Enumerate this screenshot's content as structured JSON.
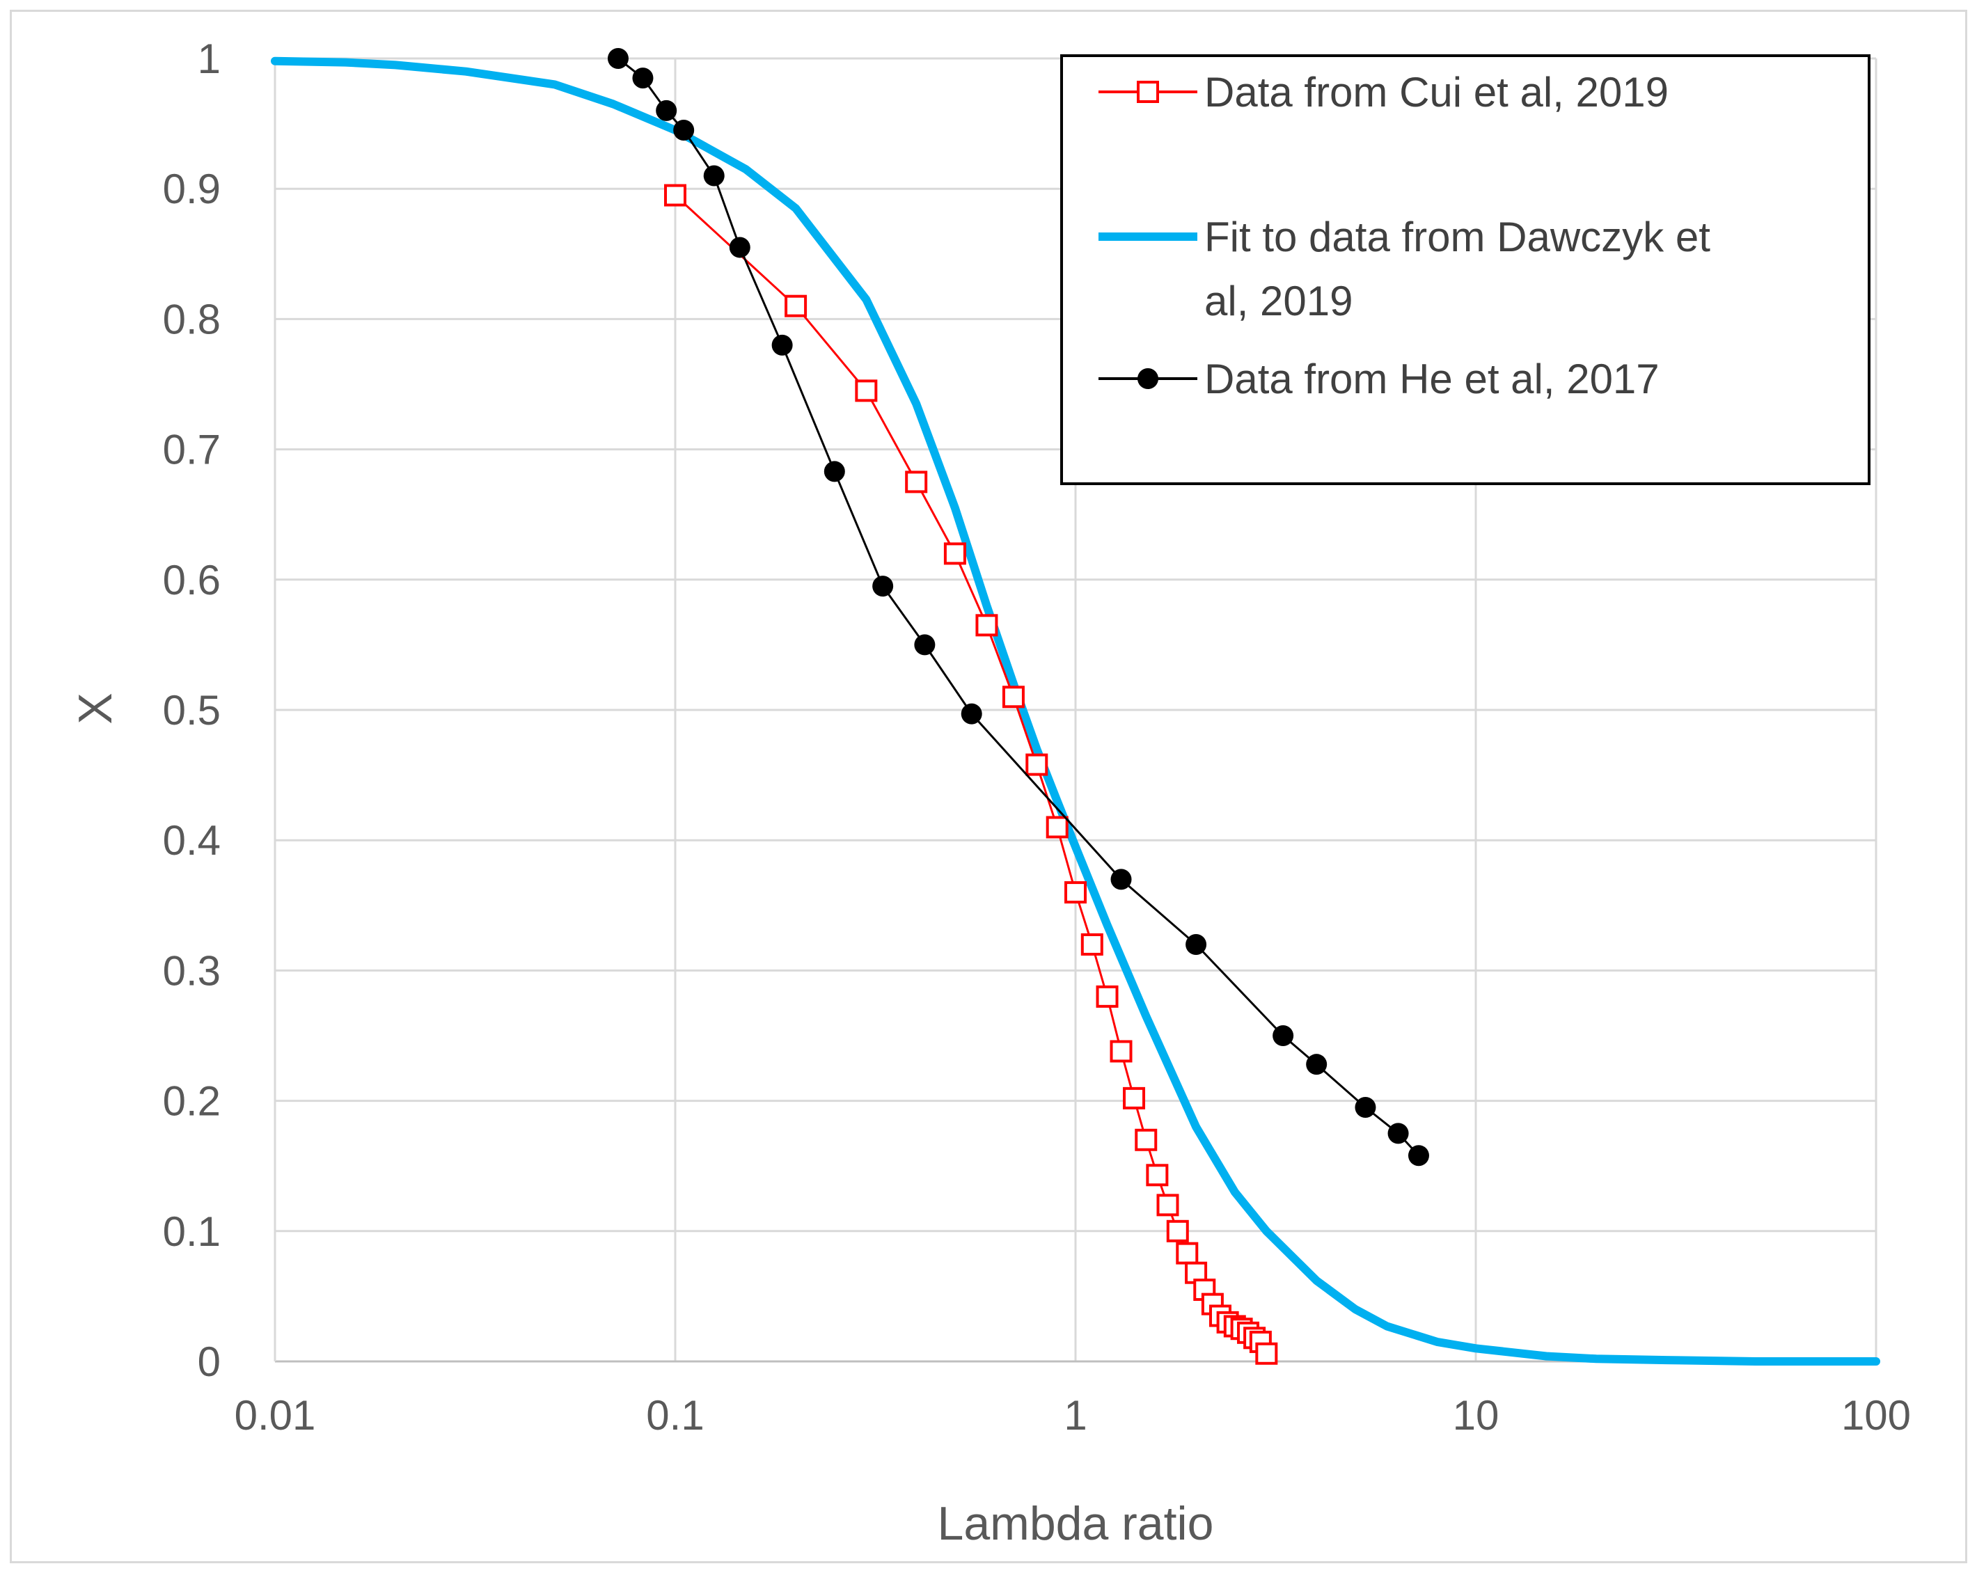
{
  "chart_data": {
    "type": "scatter",
    "title": "",
    "xlabel": "Lambda ratio",
    "ylabel": "X",
    "x_scale": "log",
    "xlim": [
      0.01,
      100
    ],
    "ylim": [
      0,
      1
    ],
    "x_ticks": [
      0.01,
      0.1,
      1,
      10,
      100
    ],
    "x_tick_labels": [
      "0.01",
      "0.1",
      "1",
      "10",
      "100"
    ],
    "y_ticks": [
      0,
      0.1,
      0.2,
      0.3,
      0.4,
      0.5,
      0.6,
      0.7,
      0.8,
      0.9,
      1
    ],
    "y_tick_labels": [
      "0",
      "0.1",
      "0.2",
      "0.3",
      "0.4",
      "0.5",
      "0.6",
      "0.7",
      "0.8",
      "0.9",
      "1"
    ],
    "grid": true,
    "legend_position": "top-right",
    "series": [
      {
        "name": "Data from Cui et al, 2019",
        "color": "#ff0000",
        "marker": "open-square",
        "line": true,
        "x": [
          0.1,
          0.2,
          0.3,
          0.4,
          0.5,
          0.6,
          0.7,
          0.8,
          0.9,
          1.0,
          1.1,
          1.2,
          1.3,
          1.4,
          1.5,
          1.6,
          1.7,
          1.8,
          1.9,
          2.0,
          2.1,
          2.2,
          2.3,
          2.4,
          2.5,
          2.6,
          2.7,
          2.8,
          2.9,
          3.0
        ],
        "y": [
          0.895,
          0.81,
          0.745,
          0.675,
          0.62,
          0.565,
          0.51,
          0.458,
          0.41,
          0.36,
          0.32,
          0.28,
          0.238,
          0.202,
          0.17,
          0.143,
          0.12,
          0.1,
          0.083,
          0.068,
          0.055,
          0.044,
          0.035,
          0.03,
          0.027,
          0.025,
          0.022,
          0.018,
          0.015,
          0.006
        ]
      },
      {
        "name": "Fit to data from Dawczyk et al, 2019",
        "color": "#00b0f0",
        "marker": "none",
        "line": true,
        "x": [
          0.01,
          0.015,
          0.02,
          0.03,
          0.05,
          0.07,
          0.1,
          0.15,
          0.2,
          0.3,
          0.4,
          0.5,
          0.6,
          0.7,
          0.8,
          0.9,
          1.0,
          1.2,
          1.5,
          2.0,
          2.5,
          3.0,
          4.0,
          5.0,
          6.0,
          8.0,
          10.0,
          15.0,
          20.0,
          30.0,
          50.0,
          100.0
        ],
        "y": [
          0.998,
          0.997,
          0.995,
          0.99,
          0.98,
          0.965,
          0.945,
          0.915,
          0.885,
          0.815,
          0.735,
          0.655,
          0.58,
          0.52,
          0.47,
          0.43,
          0.395,
          0.335,
          0.265,
          0.18,
          0.13,
          0.1,
          0.062,
          0.04,
          0.027,
          0.015,
          0.01,
          0.004,
          0.002,
          0.001,
          0.0,
          0.0
        ]
      },
      {
        "name": "Data from He et al, 2017",
        "color": "#000000",
        "marker": "filled-circle",
        "line": true,
        "x": [
          0.072,
          0.083,
          0.095,
          0.105,
          0.125,
          0.145,
          0.185,
          0.25,
          0.33,
          0.42,
          0.55,
          1.3,
          2.0,
          3.3,
          4.0,
          5.3,
          6.4,
          7.2
        ],
        "y": [
          1.0,
          0.985,
          0.96,
          0.945,
          0.91,
          0.855,
          0.78,
          0.683,
          0.595,
          0.55,
          0.497,
          0.37,
          0.32,
          0.25,
          0.228,
          0.195,
          0.175,
          0.158
        ]
      }
    ],
    "legend_lines": [
      [
        "Data from Cui et al, 2019"
      ],
      [
        "Fit to data from Dawczyk et",
        "al, 2019"
      ],
      [
        "Data from He et al, 2017"
      ]
    ]
  }
}
